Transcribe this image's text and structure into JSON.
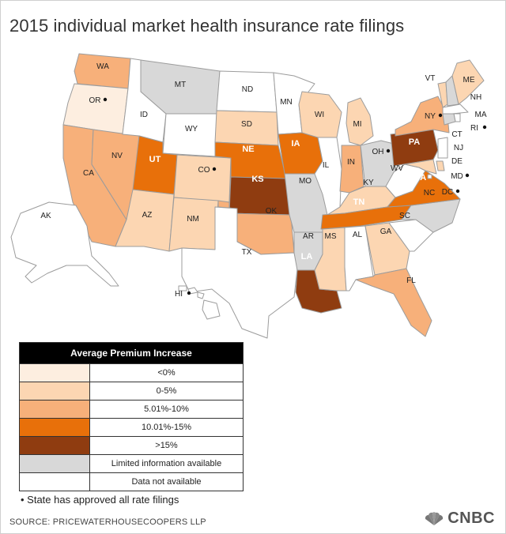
{
  "title": "2015 individual market health insurance rate filings",
  "colors": {
    "lt0": "#fdeee0",
    "p0to5": "#fcd6b2",
    "p5to10": "#f7b07a",
    "p10to15": "#e8700a",
    "gt15": "#8f3c10",
    "limited": "#d8d8d8",
    "none": "#ffffff"
  },
  "legend": {
    "header": "Average Premium Increase",
    "rows": [
      {
        "key": "lt0",
        "label": "<0%"
      },
      {
        "key": "p0to5",
        "label": "0-5%"
      },
      {
        "key": "p5to10",
        "label": "5.01%-10%"
      },
      {
        "key": "p10to15",
        "label": "10.01%-15%"
      },
      {
        "key": "gt15",
        "label": ">15%"
      },
      {
        "key": "limited",
        "label": "Limited information available"
      },
      {
        "key": "none",
        "label": "Data not available"
      }
    ]
  },
  "states": {
    "WA": {
      "label": "WA",
      "cat": "p5to10",
      "approved": false
    },
    "OR": {
      "label": "OR",
      "cat": "lt0",
      "approved": true
    },
    "CA": {
      "label": "CA",
      "cat": "p5to10",
      "approved": false
    },
    "NV": {
      "label": "NV",
      "cat": "p5to10",
      "approved": false
    },
    "ID": {
      "label": "ID",
      "cat": "none",
      "approved": false
    },
    "MT": {
      "label": "MT",
      "cat": "limited",
      "approved": false
    },
    "WY": {
      "label": "WY",
      "cat": "none",
      "approved": false
    },
    "UT": {
      "label": "UT",
      "cat": "p10to15",
      "approved": false
    },
    "CO": {
      "label": "CO",
      "cat": "p0to5",
      "approved": true
    },
    "AZ": {
      "label": "AZ",
      "cat": "p0to5",
      "approved": false
    },
    "NM": {
      "label": "NM",
      "cat": "p0to5",
      "approved": false
    },
    "ND": {
      "label": "ND",
      "cat": "none",
      "approved": false
    },
    "SD": {
      "label": "SD",
      "cat": "p0to5",
      "approved": false
    },
    "NE": {
      "label": "NE",
      "cat": "p10to15",
      "approved": false
    },
    "KS": {
      "label": "KS",
      "cat": "gt15",
      "approved": false
    },
    "OK": {
      "label": "OK",
      "cat": "p5to10",
      "approved": false
    },
    "TX": {
      "label": "TX",
      "cat": "none",
      "approved": false
    },
    "MN": {
      "label": "MN",
      "cat": "none",
      "approved": false
    },
    "IA": {
      "label": "IA",
      "cat": "p10to15",
      "approved": false
    },
    "MO": {
      "label": "MO",
      "cat": "limited",
      "approved": false
    },
    "AR": {
      "label": "AR",
      "cat": "limited",
      "approved": false
    },
    "LA": {
      "label": "LA",
      "cat": "gt15",
      "approved": false
    },
    "WI": {
      "label": "WI",
      "cat": "p0to5",
      "approved": false
    },
    "IL": {
      "label": "IL",
      "cat": "none",
      "approved": false
    },
    "MI": {
      "label": "MI",
      "cat": "p0to5",
      "approved": false
    },
    "IN": {
      "label": "IN",
      "cat": "p5to10",
      "approved": false
    },
    "OH": {
      "label": "OH",
      "cat": "limited",
      "approved": true
    },
    "KY": {
      "label": "KY",
      "cat": "p0to5",
      "approved": false
    },
    "TN": {
      "label": "TN",
      "cat": "p10to15",
      "approved": false
    },
    "MS": {
      "label": "MS",
      "cat": "p0to5",
      "approved": false
    },
    "AL": {
      "label": "AL",
      "cat": "none",
      "approved": false
    },
    "GA": {
      "label": "GA",
      "cat": "p0to5",
      "approved": false
    },
    "FL": {
      "label": "FL",
      "cat": "p5to10",
      "approved": false
    },
    "SC": {
      "label": "SC",
      "cat": "none",
      "approved": false
    },
    "NC": {
      "label": "NC",
      "cat": "limited",
      "approved": false
    },
    "VA": {
      "label": "VA",
      "cat": "p10to15",
      "approved": false
    },
    "WV": {
      "label": "WV",
      "cat": "none",
      "approved": false
    },
    "PA": {
      "label": "PA",
      "cat": "gt15",
      "approved": false
    },
    "NY": {
      "label": "NY",
      "cat": "p5to10",
      "approved": true
    },
    "VT": {
      "label": "VT",
      "cat": "p0to5",
      "approved": false
    },
    "NH": {
      "label": "NH",
      "cat": "limited",
      "approved": false
    },
    "ME": {
      "label": "ME",
      "cat": "p0to5",
      "approved": false
    },
    "MA": {
      "label": "MA",
      "cat": "none",
      "approved": false
    },
    "RI": {
      "label": "RI",
      "cat": "none",
      "approved": true
    },
    "CT": {
      "label": "CT",
      "cat": "limited",
      "approved": false
    },
    "NJ": {
      "label": "NJ",
      "cat": "none",
      "approved": false
    },
    "DE": {
      "label": "DE",
      "cat": "p0to5",
      "approved": false
    },
    "MD": {
      "label": "MD",
      "cat": "p0to5",
      "approved": true
    },
    "DC": {
      "label": "DC",
      "cat": "none",
      "approved": true
    },
    "AK": {
      "label": "AK",
      "cat": "none",
      "approved": false
    },
    "HI": {
      "label": "HI",
      "cat": "none",
      "approved": true
    }
  },
  "note": "• State has approved all rate filings",
  "source": "SOURCE: PRICEWATERHOUSECOOPERS LLP",
  "brand": "CNBC"
}
